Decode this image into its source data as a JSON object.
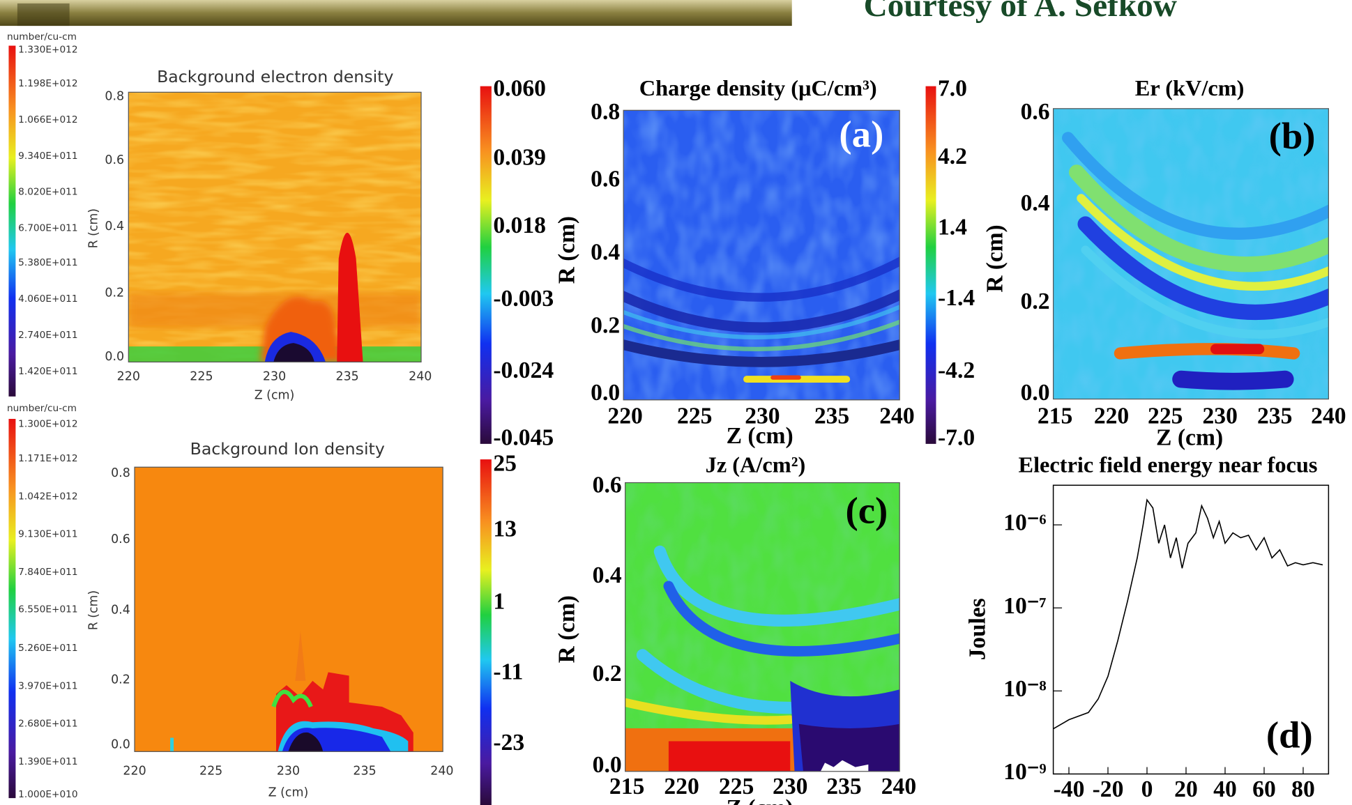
{
  "header": {
    "credit": "Courtesy of A. Sefkow"
  },
  "electron_density": {
    "unit": "number/cu-cm",
    "title": "Background electron density",
    "colorbar_labels": [
      "1.330E+012",
      "1.198E+012",
      "1.066E+012",
      "9.340E+011",
      "8.020E+011",
      "6.700E+011",
      "5.380E+011",
      "4.060E+011",
      "2.740E+011",
      "1.420E+011"
    ],
    "xticks": [
      "220",
      "225",
      "230",
      "235",
      "240"
    ],
    "yticks": [
      "0.0",
      "0.2",
      "0.4",
      "0.6",
      "0.8"
    ],
    "xlabel": "Z (cm)",
    "ylabel": "R (cm)"
  },
  "ion_density": {
    "unit": "number/cu-cm",
    "title": "Background Ion density",
    "colorbar_labels": [
      "1.300E+012",
      "1.171E+012",
      "1.042E+012",
      "9.130E+011",
      "7.840E+011",
      "6.550E+011",
      "5.260E+011",
      "3.970E+011",
      "2.680E+011",
      "1.390E+011",
      "1.000E+010"
    ],
    "xticks": [
      "220",
      "225",
      "230",
      "235",
      "240"
    ],
    "yticks": [
      "0.0",
      "0.2",
      "0.4",
      "0.6",
      "0.8"
    ],
    "xlabel": "Z (cm)",
    "ylabel": "R (cm)"
  },
  "electron_colorbar": {
    "labels": [
      "0.060",
      "0.039",
      "0.018",
      "-0.003",
      "-0.024",
      "-0.045"
    ]
  },
  "ion_colorbar": {
    "labels": [
      "25",
      "13",
      "1",
      "-11",
      "-23"
    ]
  },
  "charge_density": {
    "title": "Charge density (μC/cm³)",
    "tag": "(a)",
    "colorbar_labels": [
      "7.0",
      "4.2",
      "1.4",
      "-1.4",
      "-4.2",
      "-7.0"
    ],
    "xticks": [
      "220",
      "225",
      "230",
      "235",
      "240"
    ],
    "yticks": [
      "0.8",
      "0.6",
      "0.4",
      "0.2",
      "0.0"
    ],
    "xlabel": "Z (cm)",
    "ylabel": "R (cm)"
  },
  "er": {
    "title": "Er (kV/cm)",
    "tag": "(b)",
    "xticks": [
      "215",
      "220",
      "225",
      "230",
      "235",
      "240"
    ],
    "yticks": [
      "0.6",
      "0.4",
      "0.2",
      "0.0"
    ],
    "xlabel": "Z (cm)",
    "ylabel": "R (cm)"
  },
  "jz": {
    "title": "Jz (A/cm²)",
    "tag": "(c)",
    "xticks": [
      "215",
      "220",
      "225",
      "230",
      "235",
      "240"
    ],
    "yticks": [
      "0.6",
      "0.4",
      "0.2",
      "0.0"
    ],
    "xlabel": "Z (cm)",
    "ylabel": "R (cm)"
  },
  "chart_data": {
    "type": "line",
    "title": "Electric field energy near focus",
    "ylabel": "Joules",
    "tag": "(d)",
    "log_y": true,
    "color": "#000000",
    "x": [
      -48,
      -40,
      -30,
      -25,
      -20,
      -15,
      -10,
      -5,
      -2,
      0,
      3,
      6,
      9,
      12,
      15,
      18,
      21,
      25,
      28,
      31,
      34,
      37,
      40,
      44,
      48,
      52,
      56,
      60,
      64,
      68,
      72,
      76,
      80,
      85,
      90
    ],
    "values": [
      3.5e-09,
      4.5e-09,
      5.5e-09,
      8e-09,
      1.5e-08,
      4e-08,
      1.2e-07,
      4e-07,
      1e-06,
      2e-06,
      1.6e-06,
      6e-07,
      1e-06,
      4e-07,
      7e-07,
      3e-07,
      6e-07,
      8e-07,
      1.7e-06,
      1.2e-06,
      7e-07,
      1.1e-06,
      6e-07,
      8e-07,
      7e-07,
      7.5e-07,
      5e-07,
      7e-07,
      4e-07,
      5e-07,
      3.2e-07,
      3.5e-07,
      3.3e-07,
      3.5e-07,
      3.3e-07
    ],
    "xlim": [
      -48,
      93
    ],
    "ylim": [
      1e-09,
      3e-06
    ],
    "xticks": [
      -40,
      -20,
      0,
      20,
      40,
      60,
      80
    ],
    "yticks": [
      {
        "value": 1e-09,
        "label": "10⁻⁹"
      },
      {
        "value": 1e-08,
        "label": "10⁻⁸"
      },
      {
        "value": 1e-07,
        "label": "10⁻⁷"
      },
      {
        "value": 1e-06,
        "label": "10⁻⁶"
      }
    ]
  }
}
